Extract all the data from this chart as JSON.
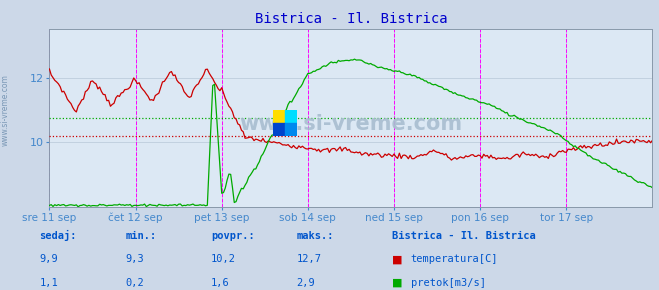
{
  "title": "Bistrica - Il. Bistrica",
  "title_color": "#0000cc",
  "bg_color": "#ccd8e8",
  "plot_bg_color": "#dce8f4",
  "grid_color": "#b8c8d8",
  "axis_label_color": "#4488cc",
  "watermark": "www.si-vreme.com",
  "x_tick_labels": [
    "sre 11 sep",
    "čet 12 sep",
    "pet 13 sep",
    "sob 14 sep",
    "ned 15 sep",
    "pon 16 sep",
    "tor 17 sep"
  ],
  "x_tick_positions": [
    0,
    48,
    96,
    144,
    192,
    240,
    288
  ],
  "total_points": 337,
  "ylim": [
    8.0,
    13.5
  ],
  "y_ticks": [
    10,
    12
  ],
  "temp_color": "#cc0000",
  "flow_color": "#00aa00",
  "flow_ylim": [
    0.0,
    3.2
  ],
  "vline_color": "#ff00ff",
  "vline_positions": [
    0,
    48,
    96,
    144,
    192,
    240,
    288,
    336
  ],
  "temp_avg": 10.2,
  "flow_avg": 1.6,
  "footer_color": "#0055cc",
  "legend_title": "Bistrica - Il. Bistrica",
  "legend_labels": [
    "temperatura[C]",
    "pretok[m3/s]"
  ],
  "legend_colors": [
    "#cc0000",
    "#00aa00"
  ],
  "footer_keys": [
    "sedaj:",
    "min.:",
    "povpr.:",
    "maks.:"
  ],
  "footer_temp_vals": [
    "9,9",
    "9,3",
    "10,2",
    "12,7"
  ],
  "footer_flow_vals": [
    "1,1",
    "0,2",
    "1,6",
    "2,9"
  ]
}
